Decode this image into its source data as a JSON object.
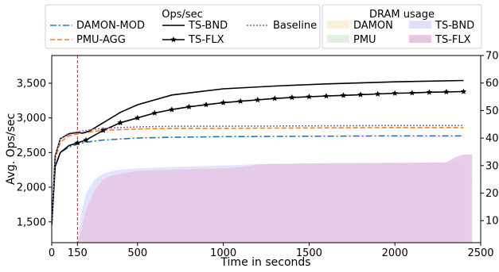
{
  "chart_data": {
    "type": "line",
    "xlabel": "Time in seconds",
    "ylabel": "Avg. Ops/sec",
    "xlim": [
      0,
      2500
    ],
    "ylim": [
      1200,
      3900
    ],
    "y2lim": [
      2,
      70
    ],
    "x_ticks": [
      0,
      150,
      500,
      1000,
      1500,
      2000,
      2500
    ],
    "y_ticks": [
      1500,
      2000,
      2500,
      3000,
      3500
    ],
    "y_tick_labels": [
      "1,500",
      "2,000",
      "2,500",
      "3,000",
      "3,500"
    ],
    "y2_ticks": [
      10,
      20,
      30,
      40,
      50,
      60,
      70
    ],
    "marker_line": {
      "x": 150,
      "color": "#d62728"
    },
    "legend_ops": {
      "title": "Ops/sec",
      "items": [
        "DAMON-MOD",
        "PMU-AGG",
        "TS-BND",
        "TS-FLX",
        "Baseline"
      ]
    },
    "legend_dram": {
      "title": "DRAM usage",
      "items": [
        "DAMON",
        "PMU",
        "TS-BND",
        "TS-FLX"
      ]
    },
    "series": [
      {
        "name": "DAMON-MOD",
        "style": "dashdot",
        "color": "#1f77b4",
        "x": [
          0,
          20,
          50,
          100,
          150,
          200,
          300,
          500,
          700,
          1000,
          1500,
          2000,
          2400
        ],
        "y": [
          1450,
          2300,
          2500,
          2580,
          2620,
          2650,
          2680,
          2710,
          2720,
          2730,
          2735,
          2740,
          2740
        ]
      },
      {
        "name": "PMU-AGG",
        "style": "dashed",
        "color": "#ff7f0e",
        "x": [
          0,
          20,
          50,
          100,
          150,
          200,
          300,
          500,
          700,
          1000,
          1500,
          2000,
          2400
        ],
        "y": [
          1450,
          2400,
          2650,
          2740,
          2770,
          2790,
          2820,
          2840,
          2850,
          2850,
          2855,
          2860,
          2860
        ]
      },
      {
        "name": "TS-BND",
        "style": "solid",
        "color": "#000000",
        "x": [
          0,
          20,
          50,
          100,
          150,
          180,
          220,
          300,
          400,
          500,
          700,
          1000,
          1300,
          1600,
          2000,
          2400
        ],
        "y": [
          1450,
          2450,
          2700,
          2770,
          2790,
          2780,
          2810,
          2930,
          3080,
          3190,
          3330,
          3420,
          3460,
          3490,
          3520,
          3540
        ]
      },
      {
        "name": "TS-FLX",
        "style": "solid-star",
        "color": "#000000",
        "x": [
          0,
          20,
          50,
          100,
          150,
          200,
          300,
          400,
          500,
          600,
          700,
          800,
          900,
          1000,
          1100,
          1200,
          1300,
          1400,
          1500,
          1600,
          1700,
          1800,
          1900,
          2000,
          2100,
          2200,
          2300,
          2400
        ],
        "y": [
          1450,
          2300,
          2500,
          2600,
          2640,
          2680,
          2820,
          2930,
          3000,
          3070,
          3120,
          3160,
          3190,
          3220,
          3240,
          3260,
          3280,
          3295,
          3305,
          3315,
          3325,
          3335,
          3345,
          3355,
          3360,
          3370,
          3375,
          3380
        ]
      },
      {
        "name": "Baseline",
        "style": "dotted",
        "color": "#9467bd",
        "x": [
          0,
          20,
          50,
          100,
          150,
          200,
          300,
          500,
          700,
          1000,
          1500,
          2000,
          2400
        ],
        "y": [
          1450,
          2450,
          2700,
          2780,
          2800,
          2820,
          2850,
          2870,
          2880,
          2880,
          2885,
          2890,
          2890
        ]
      }
    ],
    "dram_areas": [
      {
        "name": "TS-BND",
        "color": "#dfe1fb",
        "x": [
          150,
          170,
          200,
          250,
          300,
          350,
          400,
          500,
          700,
          1000,
          1200,
          1500,
          2000,
          2300,
          2400
        ],
        "y": [
          2,
          12,
          20,
          25,
          27,
          28,
          28.5,
          29,
          29.5,
          30,
          30.5,
          30.8,
          31,
          31,
          31
        ]
      },
      {
        "name": "TS-FLX",
        "color": "#e6c8e5",
        "x": [
          150,
          170,
          200,
          250,
          300,
          350,
          400,
          500,
          700,
          1000,
          1100,
          1200,
          1500,
          2000,
          2300,
          2350,
          2400,
          2450
        ],
        "y": [
          2,
          6,
          14,
          21,
          25,
          26.5,
          27,
          28,
          28.5,
          29,
          29.5,
          30.5,
          30.8,
          31,
          31.2,
          33,
          34,
          34
        ]
      }
    ]
  }
}
